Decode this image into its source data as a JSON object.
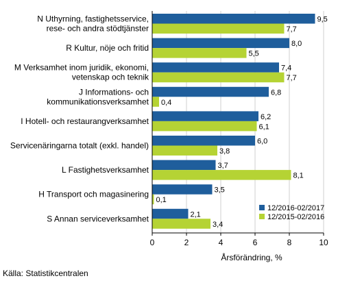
{
  "chart_data": {
    "type": "bar",
    "orientation": "horizontal",
    "categories": [
      "N Uthyrning, fastighetsservice,\nrese- och andra stödtjänster",
      "R Kultur, nöje och fritid",
      "M Verksamhet inom juridik, ekonomi,\nvetenskap och teknik",
      "J Informations- och\nkommunikationsverksamhet",
      "I Hotell- och restaurangverksamhet",
      "Servicenäringarna totalt (exkl. handel)",
      "L Fastighetsverksamhet",
      "H Transport och magasinering",
      "S Annan serviceverksamhet"
    ],
    "series": [
      {
        "name": "12/2016-02/2017",
        "color": "#1f5e9c",
        "values": [
          9.5,
          8.0,
          7.4,
          6.8,
          6.2,
          6.0,
          3.7,
          3.5,
          2.1
        ],
        "labels": [
          "9,5",
          "8,0",
          "7,4",
          "6,8",
          "6,2",
          "6,0",
          "3,7",
          "3,5",
          "2,1"
        ]
      },
      {
        "name": "12/2015-02/2016",
        "color": "#b5d334",
        "values": [
          7.7,
          5.5,
          7.7,
          0.4,
          6.1,
          3.8,
          8.1,
          0.1,
          3.4
        ],
        "labels": [
          "7,7",
          "5,5",
          "7,7",
          "0,4",
          "6,1",
          "3,8",
          "8,1",
          "0,1",
          "3,4"
        ]
      }
    ],
    "xlabel": "Årsförändring, %",
    "xlim": [
      0,
      10
    ],
    "xticks": [
      0,
      2,
      4,
      6,
      8,
      10
    ],
    "grid": "vertical",
    "legend": "bottom-right"
  },
  "source": "Källa: Statistikcentralen"
}
